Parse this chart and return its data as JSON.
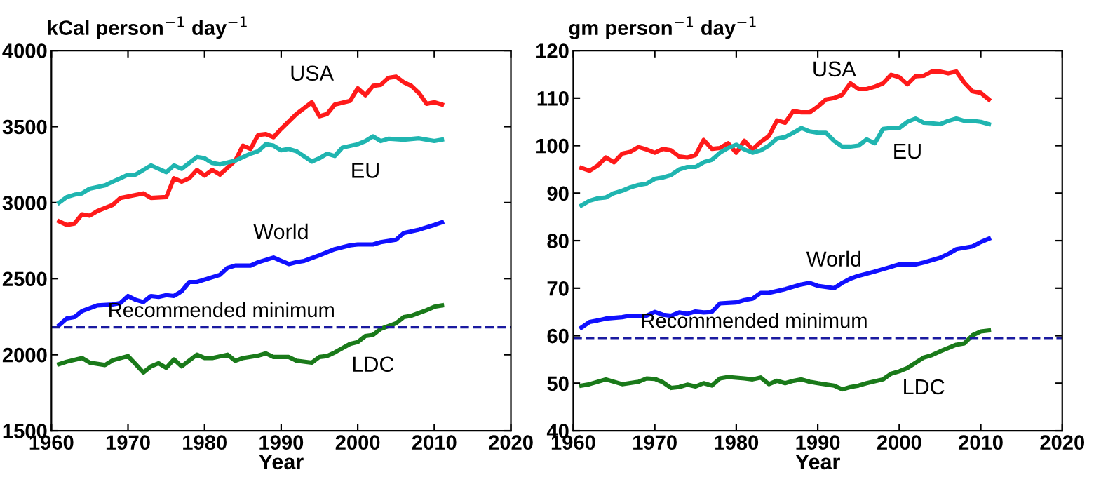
{
  "chart_data": [
    {
      "type": "line",
      "title": "kCal person$^{−1}$ day$^{−1}$",
      "xlabel": "Year",
      "xlim": [
        1960,
        2020
      ],
      "xticks": [
        1960,
        1970,
        1980,
        1990,
        2000,
        2010,
        2020
      ],
      "ylim": [
        1500,
        4000
      ],
      "yticks": [
        1500,
        2000,
        2500,
        3000,
        3500,
        4000
      ],
      "grid": false,
      "line_style": "solid",
      "ref_lines": [
        {
          "axis": "y",
          "value": 2180,
          "label": "Recommended minimum",
          "color": "#1a1aa0",
          "line_style": "dashed"
        }
      ],
      "series": [
        {
          "name": "USA",
          "color": "#ff1a1a",
          "x": [
            1961,
            1962,
            1963,
            1964,
            1965,
            1966,
            1968,
            1969,
            1972,
            1973,
            1975,
            1976,
            1977,
            1978,
            1979,
            1980,
            1981,
            1982,
            1984,
            1985,
            1986,
            1987,
            1988,
            1989,
            1990,
            1992,
            1994,
            1995,
            1996,
            1997,
            1999,
            2000,
            2001,
            2002,
            2003,
            2004,
            2005,
            2006,
            2007,
            2008,
            2009,
            2010,
            2011
          ],
          "values": [
            2877,
            2853,
            2862,
            2923,
            2914,
            2945,
            2985,
            3031,
            3061,
            3031,
            3037,
            3160,
            3138,
            3160,
            3215,
            3178,
            3215,
            3184,
            3276,
            3375,
            3353,
            3445,
            3451,
            3430,
            3485,
            3583,
            3660,
            3568,
            3583,
            3645,
            3669,
            3752,
            3706,
            3768,
            3774,
            3820,
            3829,
            3792,
            3768,
            3720,
            3650,
            3660,
            3645
          ]
        },
        {
          "name": "EU",
          "color": "#20b5b0",
          "x": [
            1961,
            1962,
            1963,
            1964,
            1965,
            1967,
            1968,
            1969,
            1970,
            1971,
            1973,
            1975,
            1976,
            1977,
            1979,
            1980,
            1981,
            1982,
            1984,
            1986,
            1987,
            1988,
            1989,
            1990,
            1991,
            1992,
            1994,
            1995,
            1996,
            1997,
            1998,
            2000,
            2001,
            2002,
            2003,
            2004,
            2006,
            2008,
            2010,
            2011
          ],
          "values": [
            3000,
            3037,
            3052,
            3061,
            3092,
            3114,
            3138,
            3160,
            3184,
            3184,
            3245,
            3200,
            3245,
            3222,
            3300,
            3292,
            3261,
            3252,
            3276,
            3322,
            3338,
            3384,
            3375,
            3344,
            3353,
            3338,
            3270,
            3292,
            3322,
            3307,
            3362,
            3384,
            3405,
            3436,
            3405,
            3420,
            3414,
            3423,
            3405,
            3414
          ]
        },
        {
          "name": "World",
          "color": "#1010ff",
          "x": [
            1961,
            1962,
            1963,
            1964,
            1966,
            1968,
            1969,
            1970,
            1971,
            1972,
            1973,
            1974,
            1975,
            1976,
            1977,
            1978,
            1979,
            1980,
            1982,
            1983,
            1984,
            1986,
            1987,
            1989,
            1990,
            1991,
            1992,
            1993,
            1995,
            1997,
            1999,
            2000,
            2002,
            2003,
            2005,
            2006,
            2008,
            2010,
            2011
          ],
          "values": [
            2194,
            2238,
            2247,
            2287,
            2324,
            2330,
            2340,
            2386,
            2361,
            2346,
            2386,
            2380,
            2392,
            2386,
            2417,
            2478,
            2478,
            2494,
            2525,
            2571,
            2586,
            2586,
            2608,
            2639,
            2617,
            2596,
            2608,
            2617,
            2654,
            2694,
            2719,
            2725,
            2725,
            2740,
            2756,
            2800,
            2822,
            2853,
            2871
          ]
        },
        {
          "name": "LDC",
          "color": "#1a7a1a",
          "x": [
            1961,
            1962,
            1964,
            1965,
            1967,
            1968,
            1970,
            1971,
            1972,
            1973,
            1974,
            1975,
            1976,
            1977,
            1979,
            1980,
            1981,
            1983,
            1984,
            1985,
            1987,
            1988,
            1989,
            1991,
            1992,
            1994,
            1995,
            1996,
            1997,
            1999,
            2000,
            2001,
            2002,
            2003,
            2005,
            2006,
            2007,
            2009,
            2010,
            2011
          ],
          "values": [
            1938,
            1954,
            1978,
            1948,
            1932,
            1963,
            1991,
            1938,
            1883,
            1923,
            1944,
            1914,
            1969,
            1923,
            2000,
            1978,
            1978,
            2000,
            1960,
            1978,
            1994,
            2009,
            1985,
            1985,
            1960,
            1948,
            1985,
            1991,
            2015,
            2071,
            2083,
            2123,
            2130,
            2170,
            2207,
            2247,
            2256,
            2293,
            2315,
            2324
          ]
        }
      ]
    },
    {
      "type": "line",
      "title": "gm person$^{−1}$ day$^{−1}$",
      "xlabel": "Year",
      "xlim": [
        1960,
        2020
      ],
      "xticks": [
        1960,
        1970,
        1980,
        1990,
        2000,
        2010,
        2020
      ],
      "ylim": [
        40,
        120
      ],
      "yticks": [
        40,
        50,
        60,
        70,
        80,
        90,
        100,
        110,
        120
      ],
      "grid": false,
      "line_style": "solid",
      "ref_lines": [
        {
          "axis": "y",
          "value": 59.5,
          "label": "Recommended minimum",
          "color": "#1a1aa0",
          "line_style": "dashed"
        }
      ],
      "series": [
        {
          "name": "USA",
          "color": "#ff1a1a",
          "x": [
            1961,
            1962,
            1963,
            1964,
            1965,
            1966,
            1967,
            1968,
            1969,
            1970,
            1971,
            1972,
            1973,
            1974,
            1975,
            1976,
            1977,
            1978,
            1979,
            1980,
            1981,
            1982,
            1983,
            1984,
            1985,
            1986,
            1987,
            1988,
            1989,
            1990,
            1991,
            1992,
            1993,
            1994,
            1995,
            1996,
            1997,
            1998,
            1999,
            2000,
            2001,
            2002,
            2003,
            2004,
            2005,
            2006,
            2007,
            2008,
            2009,
            2010,
            2011
          ],
          "values": [
            95.3,
            94.7,
            95.8,
            97.5,
            96.5,
            98.3,
            98.7,
            99.7,
            99.2,
            98.5,
            99.3,
            99.0,
            97.7,
            97.5,
            98.0,
            101.2,
            99.3,
            99.5,
            100.5,
            98.5,
            101.0,
            99.2,
            100.8,
            102.0,
            105.3,
            104.8,
            107.3,
            107.0,
            107.0,
            108.2,
            109.7,
            110.0,
            110.7,
            113.1,
            111.9,
            111.9,
            112.4,
            113.1,
            114.9,
            114.4,
            112.9,
            114.6,
            114.7,
            115.6,
            115.6,
            115.2,
            115.6,
            113.2,
            111.4,
            111.1,
            109.7
          ]
        },
        {
          "name": "EU",
          "color": "#20b5b0",
          "x": [
            1961,
            1962,
            1963,
            1964,
            1965,
            1966,
            1967,
            1968,
            1969,
            1970,
            1971,
            1972,
            1973,
            1974,
            1975,
            1976,
            1977,
            1978,
            1979,
            1980,
            1981,
            1982,
            1983,
            1984,
            1985,
            1986,
            1987,
            1988,
            1989,
            1990,
            1991,
            1992,
            1993,
            1994,
            1995,
            1996,
            1997,
            1998,
            1999,
            2000,
            2001,
            2002,
            2003,
            2004,
            2005,
            2006,
            2007,
            2008,
            2009,
            2010,
            2011
          ],
          "values": [
            87.4,
            88.4,
            88.9,
            89.1,
            90.0,
            90.5,
            91.2,
            91.7,
            92.0,
            93.0,
            93.3,
            93.8,
            95.0,
            95.5,
            95.5,
            96.5,
            97.0,
            98.5,
            99.5,
            100.2,
            99.2,
            98.5,
            99.0,
            100.0,
            101.5,
            101.8,
            102.7,
            103.7,
            103.0,
            102.7,
            102.7,
            101.0,
            99.8,
            99.8,
            100.0,
            101.3,
            100.5,
            103.5,
            103.7,
            103.7,
            105.0,
            105.7,
            104.8,
            104.7,
            104.5,
            105.2,
            105.7,
            105.2,
            105.2,
            105.0,
            104.5
          ]
        },
        {
          "name": "World",
          "color": "#1010ff",
          "x": [
            1961,
            1962,
            1963,
            1964,
            1966,
            1967,
            1969,
            1970,
            1971,
            1972,
            1973,
            1974,
            1975,
            1976,
            1977,
            1978,
            1980,
            1981,
            1982,
            1983,
            1984,
            1986,
            1988,
            1989,
            1990,
            1992,
            1993,
            1994,
            1995,
            1997,
            1999,
            2000,
            2002,
            2003,
            2005,
            2006,
            2007,
            2008,
            2009,
            2010,
            2011
          ],
          "values": [
            61.7,
            62.9,
            63.2,
            63.6,
            63.9,
            64.2,
            64.2,
            65.0,
            64.4,
            64.2,
            64.9,
            64.6,
            65.1,
            64.9,
            65.0,
            66.8,
            67.0,
            67.5,
            67.8,
            69.0,
            69.0,
            69.8,
            70.8,
            71.1,
            70.5,
            70.0,
            71.1,
            72.0,
            72.6,
            73.5,
            74.5,
            75.0,
            75.0,
            75.4,
            76.4,
            77.2,
            78.2,
            78.5,
            78.8,
            79.7,
            80.4
          ]
        },
        {
          "name": "LDC",
          "color": "#1a7a1a",
          "x": [
            1961,
            1962,
            1964,
            1966,
            1968,
            1969,
            1970,
            1971,
            1972,
            1973,
            1974,
            1975,
            1976,
            1977,
            1978,
            1979,
            1981,
            1982,
            1983,
            1984,
            1985,
            1986,
            1987,
            1988,
            1989,
            1990,
            1992,
            1993,
            1994,
            1995,
            1996,
            1998,
            1999,
            2000,
            2001,
            2002,
            2003,
            2004,
            2005,
            2006,
            2007,
            2008,
            2009,
            2010,
            2011
          ],
          "values": [
            49.5,
            49.8,
            50.8,
            49.8,
            50.3,
            51.0,
            50.9,
            50.2,
            49.0,
            49.2,
            49.7,
            49.3,
            50.0,
            49.5,
            51.0,
            51.3,
            51.0,
            50.8,
            51.2,
            49.8,
            50.5,
            50.0,
            50.5,
            50.8,
            50.3,
            50.0,
            49.5,
            48.7,
            49.2,
            49.5,
            50.0,
            50.8,
            52.0,
            52.5,
            53.2,
            54.3,
            55.4,
            55.9,
            56.7,
            57.4,
            58.1,
            58.4,
            60.1,
            60.9,
            61.1
          ]
        }
      ]
    }
  ]
}
